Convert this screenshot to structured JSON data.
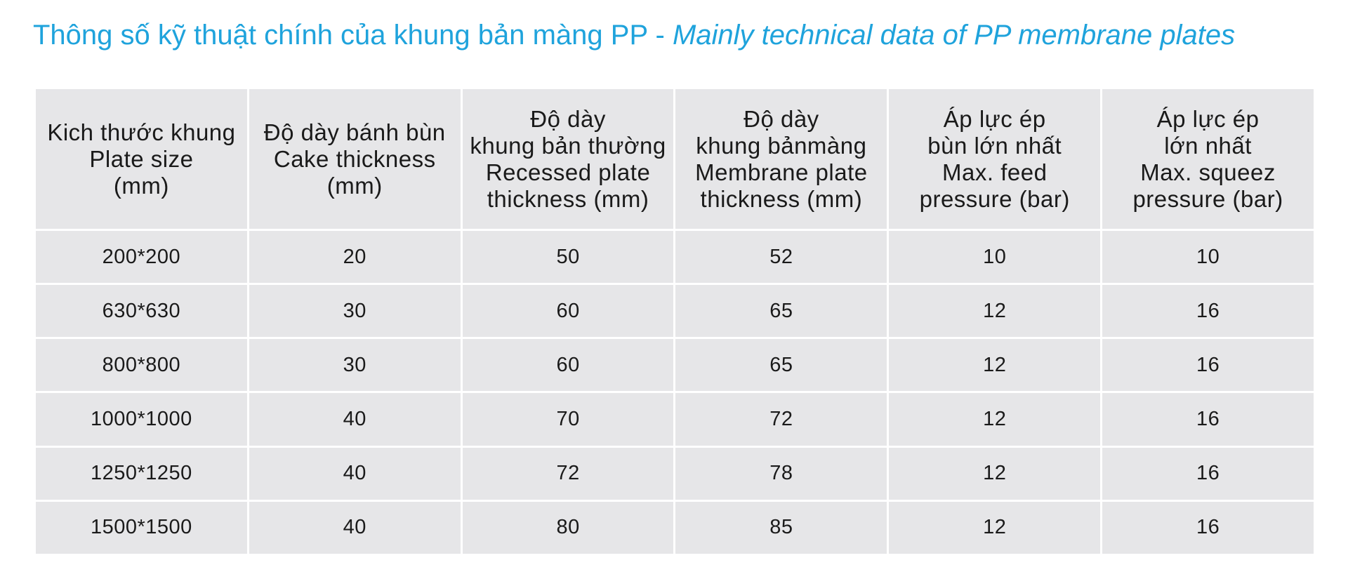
{
  "title": {
    "vi": "Thông số kỹ thuật chính của khung bản màng PP - ",
    "en": "Mainly technical data of PP membrane plates"
  },
  "table": {
    "headers": [
      [
        "Kich thước khung",
        "Plate size",
        "(mm)"
      ],
      [
        "Độ dày bánh bùn",
        "Cake thickness",
        "(mm)"
      ],
      [
        "Độ dày",
        "khung bản thường",
        "Recessed plate",
        "thickness (mm)"
      ],
      [
        "Độ dày",
        "khung bảnmàng",
        "Membrane plate",
        "thickness (mm)"
      ],
      [
        "Áp lực ép",
        "bùn lớn nhất",
        "Max. feed",
        "pressure (bar)"
      ],
      [
        "Áp lực ép",
        "lớn nhất",
        "Max. squeez",
        "pressure  (bar)"
      ]
    ],
    "rows": [
      [
        "200*200",
        "20",
        "50",
        "52",
        "10",
        "10"
      ],
      [
        "630*630",
        "30",
        "60",
        "65",
        "12",
        "16"
      ],
      [
        "800*800",
        "30",
        "60",
        "65",
        "12",
        "16"
      ],
      [
        "1000*1000",
        "40",
        "70",
        "72",
        "12",
        "16"
      ],
      [
        "1250*1250",
        "40",
        "72",
        "78",
        "12",
        "16"
      ],
      [
        "1500*1500",
        "40",
        "80",
        "85",
        "12",
        "16"
      ]
    ]
  },
  "colors": {
    "title": "#1fa3dc",
    "table_background": "#e6e6e8",
    "grid_lines": "#ffffff",
    "text": "#1a1a1a"
  }
}
